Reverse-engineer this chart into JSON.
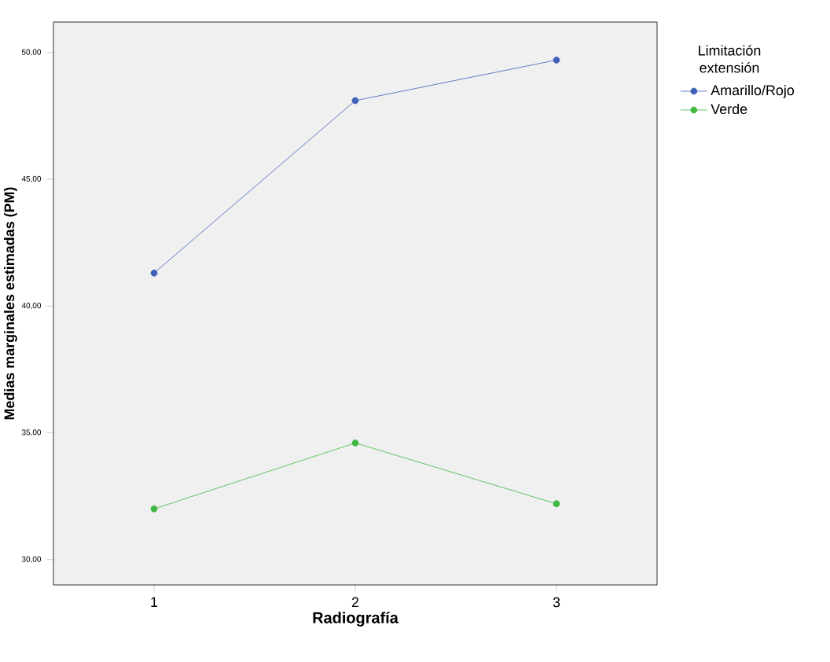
{
  "chart_data": {
    "type": "line",
    "xlabel": "Radiografía",
    "ylabel": "Medias marginales estimadas (PM)",
    "legend_title": "Limitación extensión",
    "categories": [
      "1",
      "2",
      "3"
    ],
    "series": [
      {
        "name": "Amarillo/Rojo",
        "color": "#4060b8",
        "values": [
          41.3,
          48.1,
          49.7
        ]
      },
      {
        "name": "Verde",
        "color": "#40b840",
        "values": [
          32.0,
          34.6,
          32.2
        ]
      }
    ],
    "ylim": [
      29,
      51.2
    ],
    "yticks": [
      {
        "value": 30,
        "label": "30,00"
      },
      {
        "value": 35,
        "label": "35,00"
      },
      {
        "value": 40,
        "label": "40,00"
      },
      {
        "value": 45,
        "label": "45,00"
      },
      {
        "value": 50,
        "label": "50,00"
      }
    ],
    "grid": false,
    "legend": "top right",
    "marker": "circle",
    "line_style": "solid"
  }
}
